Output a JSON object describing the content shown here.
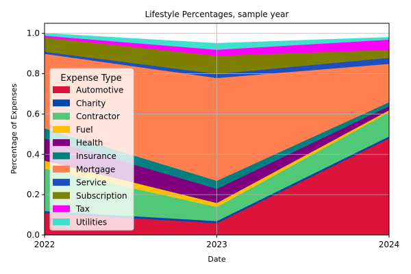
{
  "chart_data": {
    "type": "area",
    "title": "Lifestyle Percentages, sample year",
    "xlabel": "Date",
    "ylabel": "Percentage of Expenses",
    "x": [
      "2022",
      "2023",
      "2024"
    ],
    "ylim": [
      0,
      1.05
    ],
    "yticks": [
      "0.0",
      "0.2",
      "0.4",
      "0.6",
      "0.8",
      "1.0"
    ],
    "grid": true,
    "legend": {
      "title": "Expense Type",
      "position": "center-left"
    },
    "series": [
      {
        "name": "Automotive",
        "color": "#dc143c",
        "values": [
          0.11,
          0.06,
          0.48
        ]
      },
      {
        "name": "Charity",
        "color": "#0047ab",
        "values": [
          0.01,
          0.01,
          0.01
        ]
      },
      {
        "name": "Contractor",
        "color": "#50c878",
        "values": [
          0.21,
          0.07,
          0.12
        ]
      },
      {
        "name": "Fuel",
        "color": "#ffc000",
        "values": [
          0.04,
          0.02,
          0.01
        ]
      },
      {
        "name": "Health",
        "color": "#800080",
        "values": [
          0.11,
          0.07,
          0.02
        ]
      },
      {
        "name": "Insurance",
        "color": "#008080",
        "values": [
          0.05,
          0.04,
          0.02
        ]
      },
      {
        "name": "Mortgage",
        "color": "#ff7f50",
        "values": [
          0.37,
          0.51,
          0.19
        ]
      },
      {
        "name": "Service",
        "color": "#1e4fbf",
        "values": [
          0.01,
          0.02,
          0.03
        ]
      },
      {
        "name": "Subscription",
        "color": "#808000",
        "values": [
          0.07,
          0.09,
          0.04
        ]
      },
      {
        "name": "Tax",
        "color": "#ff00ff",
        "values": [
          0.01,
          0.03,
          0.05
        ]
      },
      {
        "name": "Utilities",
        "color": "#40e0d0",
        "values": [
          0.01,
          0.03,
          0.01
        ]
      }
    ]
  }
}
